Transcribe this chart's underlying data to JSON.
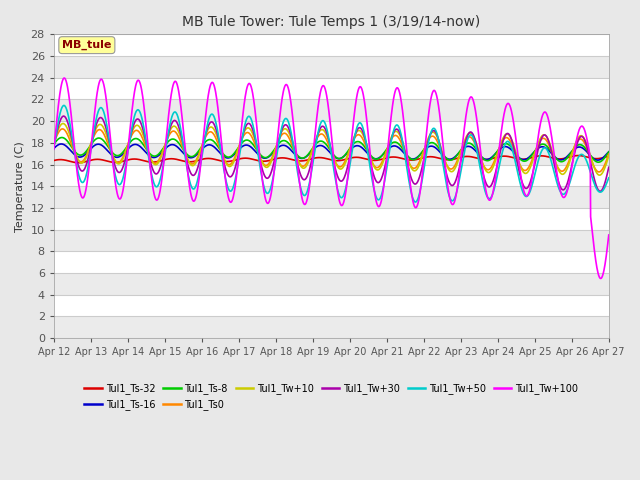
{
  "title": "MB Tule Tower: Tule Temps 1 (3/19/14-now)",
  "ylabel": "Temperature (C)",
  "ylim": [
    0,
    28
  ],
  "yticks": [
    0,
    2,
    4,
    6,
    8,
    10,
    12,
    14,
    16,
    18,
    20,
    22,
    24,
    26,
    28
  ],
  "annotation_box": "MB_tule",
  "annotation_color": "#8B0000",
  "annotation_bg": "#FFFF99",
  "background_color": "#e8e8e8",
  "plot_bg": "#ffffff",
  "grid_color": "#cccccc",
  "series": [
    {
      "name": "Tul1_Ts-32",
      "color": "#dd0000",
      "lw": 1.2
    },
    {
      "name": "Tul1_Ts-16",
      "color": "#0000cc",
      "lw": 1.2
    },
    {
      "name": "Tul1_Ts-8",
      "color": "#00cc00",
      "lw": 1.2
    },
    {
      "name": "Tul1_Ts0",
      "color": "#ff8800",
      "lw": 1.2
    },
    {
      "name": "Tul1_Tw+10",
      "color": "#cccc00",
      "lw": 1.2
    },
    {
      "name": "Tul1_Tw+30",
      "color": "#aa00aa",
      "lw": 1.2
    },
    {
      "name": "Tul1_Tw+50",
      "color": "#00cccc",
      "lw": 1.2
    },
    {
      "name": "Tul1_Tw+100",
      "color": "#ff00ff",
      "lw": 1.2
    }
  ]
}
